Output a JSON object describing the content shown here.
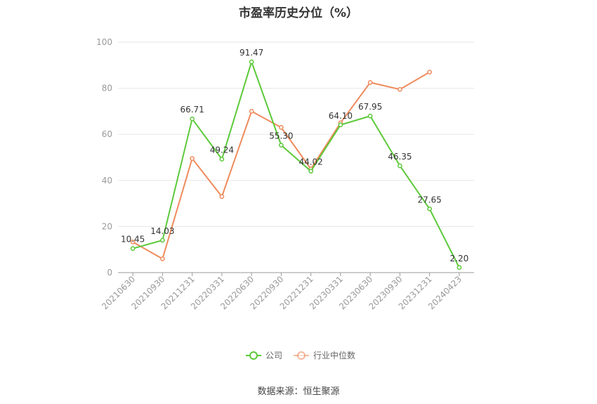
{
  "chart_data": {
    "type": "line",
    "title": "市盈率历史分位（%）",
    "categories": [
      "20210630",
      "20210930",
      "20211231",
      "20220331",
      "20220630",
      "20220930",
      "20221231",
      "20230331",
      "20230630",
      "20230930",
      "20231231",
      "20240423"
    ],
    "ylim": [
      0,
      100
    ],
    "yticks": [
      0,
      20,
      40,
      60,
      80,
      100
    ],
    "grid": true,
    "legend_position": "bottom-center",
    "series": [
      {
        "name": "公司",
        "color": "#5cc93a",
        "values": [
          10.45,
          14.03,
          66.71,
          49.24,
          91.47,
          55.3,
          44.02,
          64.1,
          67.95,
          46.35,
          27.65,
          2.2
        ],
        "labels": [
          "10.45",
          "14.03",
          "66.71",
          "49.24",
          "91.47",
          "55.30",
          "44.02",
          "64.10",
          "67.95",
          "46.35",
          "27.65",
          "2.20"
        ]
      },
      {
        "name": "行业中位数",
        "color": "#ef8b5d",
        "values": [
          13.3,
          6.0,
          49.5,
          33.0,
          70.0,
          63.0,
          45.0,
          65.0,
          82.5,
          79.5,
          87.0,
          null
        ]
      }
    ]
  },
  "source_text": "数据来源：恒生聚源"
}
